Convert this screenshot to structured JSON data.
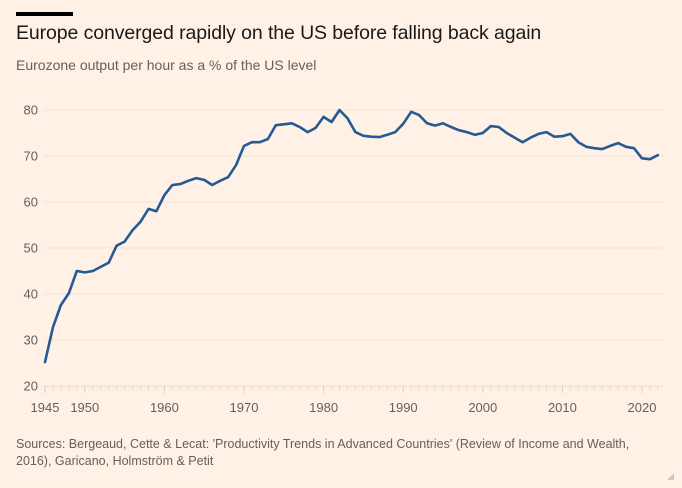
{
  "header": {
    "title": "Europe converged rapidly on the US before falling back again",
    "subtitle": "Eurozone output per hour as a % of the US level"
  },
  "footer": {
    "source": "Sources: Bergeaud, Cette & Lecat: 'Productivity Trends in Advanced Countries' (Review of Income and Wealth, 2016), Garicano, Holmström & Petit"
  },
  "colors": {
    "background": "#fff1e5",
    "line": "#255a93",
    "grid": "#efe3d8",
    "axis_text": "#66605c"
  },
  "chart_data": {
    "type": "line",
    "title": "Europe converged rapidly on the US before falling back again",
    "subtitle": "Eurozone output per hour as a % of the US level",
    "xlabel": "",
    "ylabel": "",
    "xlim": [
      1945,
      2022
    ],
    "ylim": [
      20,
      80
    ],
    "x_ticks": [
      1945,
      1950,
      1960,
      1970,
      1980,
      1990,
      2000,
      2010,
      2020
    ],
    "y_ticks": [
      20,
      30,
      40,
      50,
      60,
      70,
      80
    ],
    "grid": true,
    "legend": "none",
    "series": [
      {
        "name": "Eurozone output per hour as % of US",
        "x": [
          1945,
          1946,
          1947,
          1948,
          1949,
          1950,
          1951,
          1952,
          1953,
          1954,
          1955,
          1956,
          1957,
          1958,
          1959,
          1960,
          1961,
          1962,
          1963,
          1964,
          1965,
          1966,
          1967,
          1968,
          1969,
          1970,
          1971,
          1972,
          1973,
          1974,
          1975,
          1976,
          1977,
          1978,
          1979,
          1980,
          1981,
          1982,
          1983,
          1984,
          1985,
          1986,
          1987,
          1988,
          1989,
          1990,
          1991,
          1992,
          1993,
          1994,
          1995,
          1996,
          1997,
          1998,
          1999,
          2000,
          2001,
          2002,
          2003,
          2004,
          2005,
          2006,
          2007,
          2008,
          2009,
          2010,
          2011,
          2012,
          2013,
          2014,
          2015,
          2016,
          2017,
          2018,
          2019,
          2020,
          2021,
          2022
        ],
        "values": [
          25.2,
          32.8,
          37.6,
          40.2,
          45.0,
          44.7,
          45.0,
          45.9,
          46.8,
          50.5,
          51.4,
          53.9,
          55.7,
          58.5,
          58.0,
          61.5,
          63.7,
          63.9,
          64.6,
          65.2,
          64.8,
          63.7,
          64.6,
          65.4,
          68.0,
          72.2,
          73.0,
          73.0,
          73.7,
          76.7,
          76.9,
          77.1,
          76.3,
          75.2,
          76.1,
          78.5,
          77.4,
          80.0,
          78.2,
          75.2,
          74.4,
          74.2,
          74.1,
          74.6,
          75.2,
          77.0,
          79.6,
          78.9,
          77.1,
          76.6,
          77.1,
          76.3,
          75.6,
          75.2,
          74.6,
          75.0,
          76.5,
          76.3,
          75.0,
          74.0,
          73.0,
          74.0,
          74.8,
          75.2,
          74.2,
          74.3,
          74.8,
          73.0,
          72.0,
          71.7,
          71.5,
          72.2,
          72.8,
          72.0,
          71.7,
          69.5,
          69.3,
          70.2
        ]
      }
    ]
  }
}
